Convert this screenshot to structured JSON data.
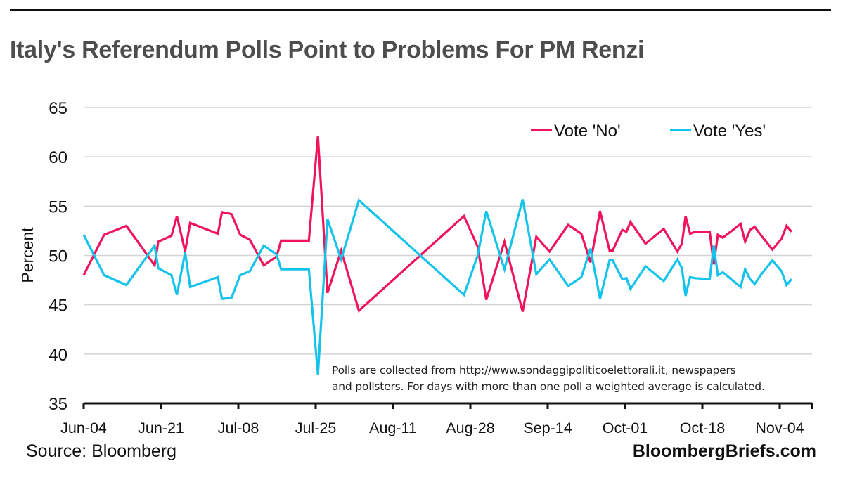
{
  "chart_data": {
    "type": "line",
    "title": "Italy's Referendum Polls Point to Problems For PM Renzi",
    "ylabel": "Percent",
    "xlabel": "",
    "ylim": [
      35,
      65
    ],
    "yticks": [
      35,
      40,
      45,
      50,
      55,
      60,
      65
    ],
    "x_unit": "days since Jun-04",
    "xlim": [
      0,
      160
    ],
    "xticks": [
      {
        "day": 0,
        "label": "Jun-04"
      },
      {
        "day": 17,
        "label": "Jun-21"
      },
      {
        "day": 34,
        "label": "Jul-08"
      },
      {
        "day": 51,
        "label": "Jul-25"
      },
      {
        "day": 68,
        "label": "Aug-11"
      },
      {
        "day": 85,
        "label": "Aug-28"
      },
      {
        "day": 102,
        "label": "Sep-14"
      },
      {
        "day": 119,
        "label": "Oct-01"
      },
      {
        "day": 136,
        "label": "Oct-18"
      },
      {
        "day": 153,
        "label": "Nov-04"
      }
    ],
    "grid": true,
    "legend_position": "top-right",
    "x": [
      0,
      4.5,
      9.4,
      15.6,
      16.4,
      19.3,
      20.5,
      22.3,
      23.4,
      29.5,
      30.4,
      32.5,
      34.4,
      36.5,
      39.6,
      42.4,
      43.4,
      49.5,
      51.5,
      53.6,
      56.6,
      60.5,
      83.6,
      86.6,
      88.5,
      92.5,
      96.5,
      99.5,
      102.4,
      106.5,
      109.4,
      111.4,
      113.5,
      115.6,
      116.3,
      118.4,
      119.3,
      120.2,
      123.5,
      127.5,
      130.5,
      131.5,
      132.3,
      133.3,
      134.4,
      137.6,
      138.5,
      139.4,
      140.5,
      144.4,
      145.4,
      146.5,
      147.5,
      148.8,
      151.4,
      153.4,
      154.5,
      155.6
    ],
    "series": [
      {
        "name": "Vote 'No'",
        "color": "#f0145a",
        "values": [
          48.0,
          52.1,
          53.0,
          49.0,
          51.4,
          52.0,
          54.0,
          50.4,
          53.3,
          52.2,
          54.4,
          54.2,
          52.1,
          51.6,
          49.0,
          49.9,
          51.5,
          51.5,
          62.1,
          46.2,
          50.5,
          44.4,
          54.0,
          50.9,
          45.5,
          51.4,
          44.3,
          51.9,
          50.4,
          53.1,
          52.2,
          49.3,
          54.5,
          50.5,
          50.5,
          52.6,
          52.4,
          53.4,
          51.2,
          52.7,
          50.4,
          51.2,
          54.0,
          52.2,
          52.4,
          52.4,
          49.1,
          52.1,
          51.8,
          53.2,
          51.4,
          52.6,
          52.9,
          52.1,
          50.6,
          51.7,
          53.0,
          52.4
        ]
      },
      {
        "name": "Vote 'Yes'",
        "color": "#14c3ec",
        "values": [
          52.1,
          48.0,
          47.0,
          51.0,
          48.7,
          48.0,
          46.0,
          50.3,
          46.8,
          47.8,
          45.6,
          45.7,
          48.0,
          48.4,
          51.0,
          50.1,
          48.6,
          48.6,
          37.9,
          53.7,
          49.6,
          55.6,
          46.0,
          50.0,
          54.5,
          48.6,
          55.7,
          48.1,
          49.6,
          46.9,
          47.8,
          50.7,
          45.6,
          49.5,
          49.5,
          47.6,
          47.7,
          46.6,
          48.9,
          47.4,
          49.6,
          48.7,
          45.9,
          47.8,
          47.7,
          47.6,
          51.0,
          48.0,
          48.3,
          46.8,
          48.6,
          47.6,
          47.1,
          48.0,
          49.5,
          48.4,
          47.0,
          47.6
        ]
      }
    ],
    "annotation": [
      "Polls are collected from http://www.sondaggipoliticoelettorali.it, newspapers",
      "and pollsters. For days with more than one poll a weighted average is calculated."
    ]
  },
  "footer": {
    "source": "Source: Bloomberg",
    "brand": "BloombergBriefs.com"
  }
}
